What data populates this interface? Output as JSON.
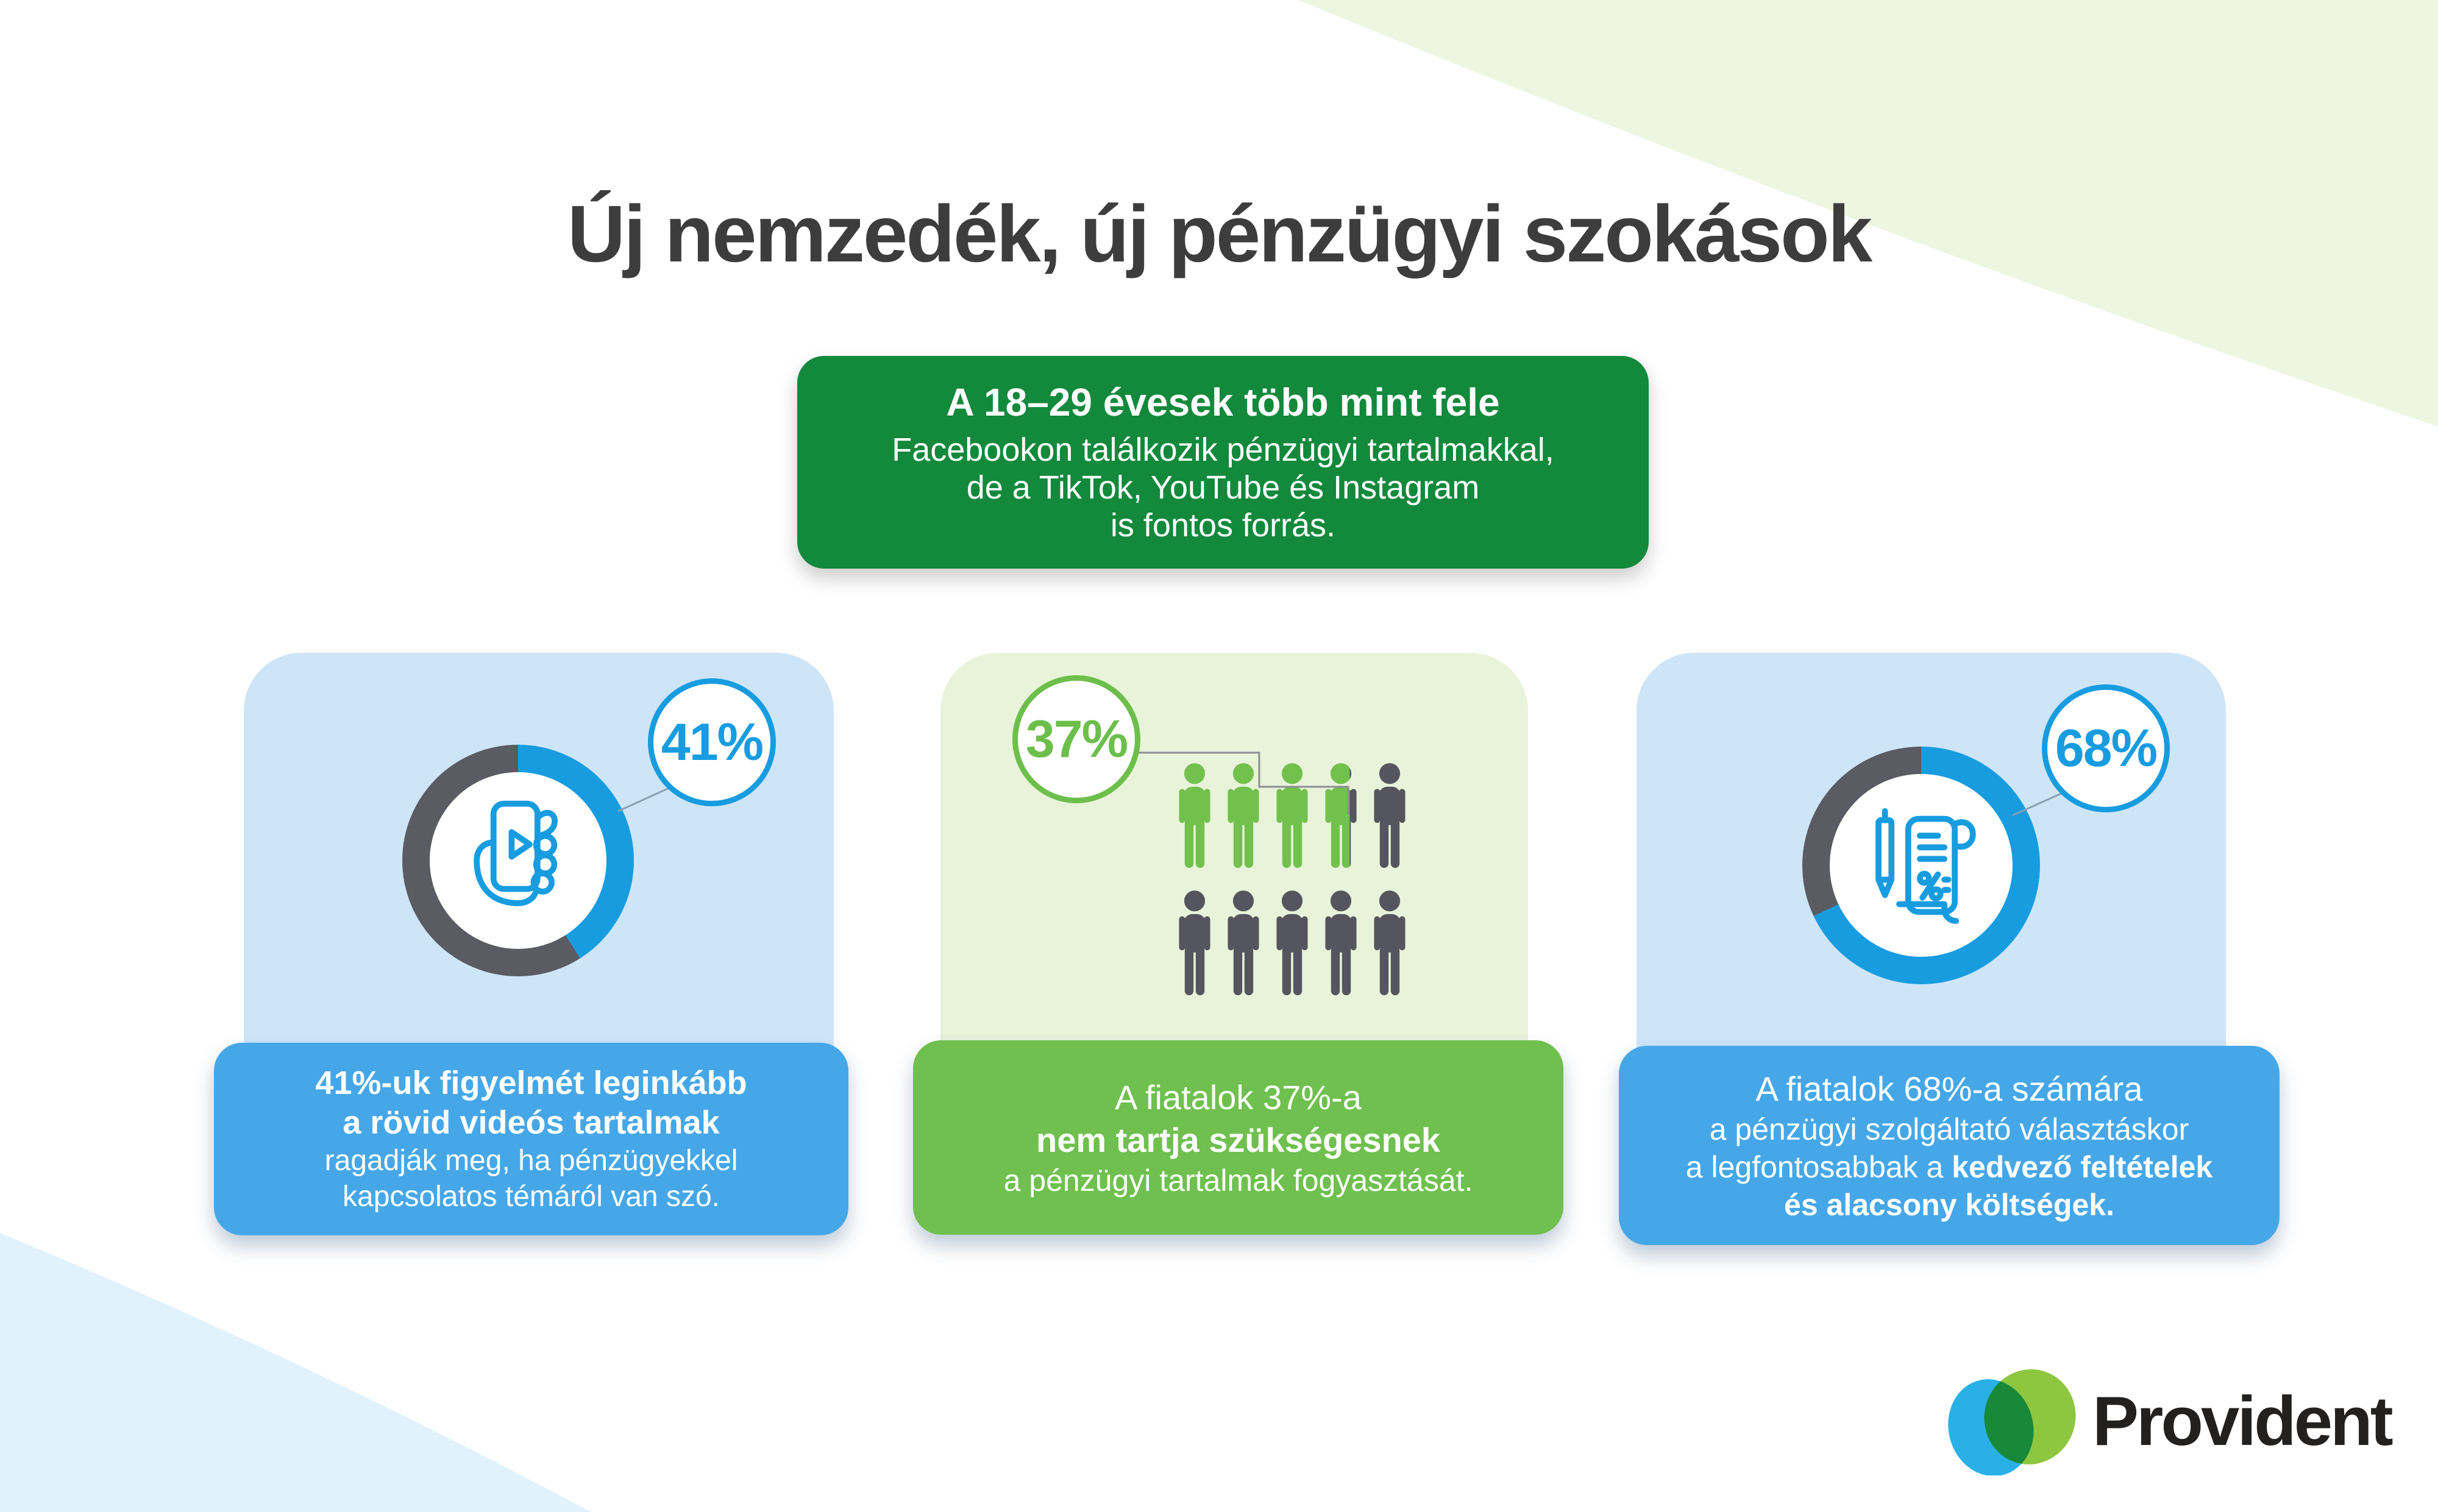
{
  "title": "Új nemzedék, új pénzügyi szokások",
  "header_box": {
    "headline": "A 18–29 évesek több mint fele",
    "line1": "Facebookon találkozik pénzügyi tartalmakkal,",
    "line2": "de a TikTok, YouTube és Instagram",
    "line3": "is fontos forrás."
  },
  "cards": [
    {
      "badge": "41%",
      "icon": "hand-holding-phone-video-icon",
      "line1_bold": "41%-uk figyelmét leginkább",
      "line2_bold": "a rövid videós tartalmak",
      "line3": "ragadják meg, ha pénzügyekkel",
      "line4": "kapcsolatos témáról van szó."
    },
    {
      "badge": "37%",
      "icon": "people-pictograph",
      "line1": "A fiatalok 37%-a",
      "line2_bold": "nem tartja szükségesnek",
      "line3": "a pénzügyi tartalmak fogyasztását."
    },
    {
      "badge": "68%",
      "icon": "contract-scroll-and-pen-icon",
      "line1": "A fiatalok 68%-a számára",
      "line2": "a pénzügyi szolgáltató választáskor",
      "line3_regular": "a legfontosabbak a ",
      "line3_bold": "kedvező feltételek",
      "line4_bold": "és alacsony költségek."
    }
  ],
  "logo": {
    "text": "Provident"
  },
  "chart_data": [
    {
      "type": "donut",
      "label": "41%",
      "value": 41,
      "unit": "%",
      "start": "12-oclock-clockwise",
      "description": "41%-uk figyelmét leginkább a rövid videós tartalmak ragadják meg, ha pénzügyekkel kapcsolatos témáról van szó.",
      "colors": {
        "filled": "#179ce0",
        "rest": "#5a5b63"
      }
    },
    {
      "type": "pictograph",
      "label": "37%",
      "value": 37,
      "unit": "%",
      "total_icons": 10,
      "filled_icons": 3.7,
      "rows": 2,
      "columns": 5,
      "description": "A fiatalok 37%-a nem tartja szükségesnek a pénzügyi tartalmak fogyasztását.",
      "colors": {
        "filled": "#72c14d",
        "rest": "#54555e"
      }
    },
    {
      "type": "donut",
      "label": "68%",
      "value": 68,
      "unit": "%",
      "start": "12-oclock-clockwise",
      "description": "A fiatalok 68%-a számára a pénzügyi szolgáltató választáskor a legfontosabbak a kedvező feltételek és alacsony költségek.",
      "colors": {
        "filled": "#179ce0",
        "rest": "#5a5b63"
      }
    }
  ],
  "colors": {
    "background": "#ffffff",
    "blob_green": "#eef6e2",
    "blob_blue": "#e2f2fd",
    "title_text": "#3d3d3d",
    "header_green": "#13893c",
    "card_blue_bg": "#cee5f8",
    "card_green_bg": "#e9f3da",
    "box_blue": "#46a7e8",
    "box_green": "#6fc04f",
    "accent_blue": "#179ce0",
    "accent_green": "#6cbf4b",
    "donut_gray": "#5a5b63",
    "people_green": "#72c14d",
    "people_gray": "#54555e",
    "leader_line": "#8aa0b0",
    "bracket_line": "#8d8d95",
    "logo_cyan": "#29b0e6",
    "logo_green": "#8dc63f",
    "logo_text": "#222120"
  }
}
